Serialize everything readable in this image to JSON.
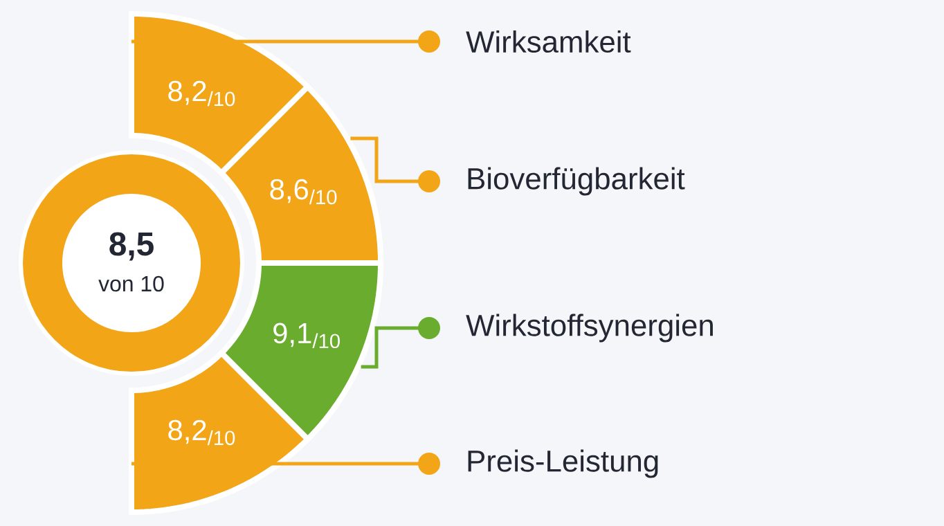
{
  "chart_data": {
    "type": "other",
    "categories": [
      "Wirksamkeit",
      "Bioverfügbarkeit",
      "Wirkstoffsynergien",
      "Preis-Leistung"
    ],
    "values": [
      8.2,
      8.6,
      9.1,
      8.2
    ],
    "value_labels": [
      "8,2$_{/10}$",
      "8,6$_{/10}$",
      "9,1$_{/10}$",
      "8,2$_{/10}$"
    ],
    "colors": [
      "#f2a516",
      "#f2a516",
      "#6aad2e",
      "#f2a516"
    ],
    "annotations": [
      "8,5",
      "von 10"
    ]
  }
}
